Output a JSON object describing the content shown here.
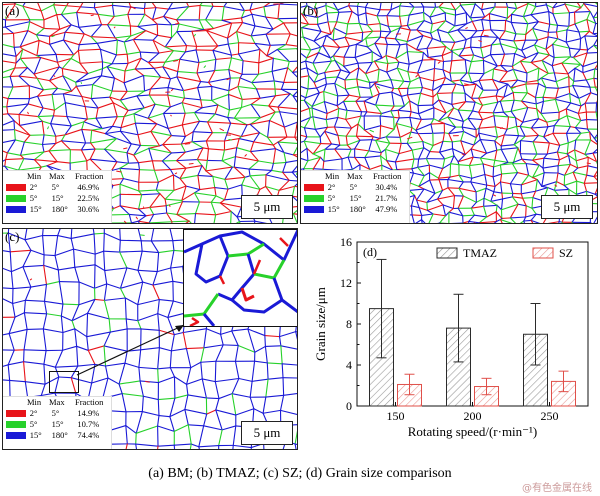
{
  "panels": [
    {
      "letter": "(a)",
      "legend": {
        "headers": [
          "Min",
          "Max",
          "Fraction"
        ],
        "rows": [
          {
            "min": "2°",
            "max": "5°",
            "fraction": "46.9%",
            "color": "#e8141a"
          },
          {
            "min": "5°",
            "max": "15°",
            "fraction": "22.5%",
            "color": "#27d12b"
          },
          {
            "min": "15°",
            "max": "180°",
            "fraction": "30.6%",
            "color": "#1a1ad6"
          }
        ]
      },
      "scale": "5 μm"
    },
    {
      "letter": "(b)",
      "legend": {
        "headers": [
          "Min",
          "Max",
          "Fraction"
        ],
        "rows": [
          {
            "min": "2°",
            "max": "5°",
            "fraction": "30.4%",
            "color": "#e8141a"
          },
          {
            "min": "5°",
            "max": "15°",
            "fraction": "21.7%",
            "color": "#27d12b"
          },
          {
            "min": "15°",
            "max": "180°",
            "fraction": "47.9%",
            "color": "#1a1ad6"
          }
        ]
      },
      "scale": "5 μm"
    },
    {
      "letter": "(c)",
      "legend": {
        "headers": [
          "Min",
          "Max",
          "Fraction"
        ],
        "rows": [
          {
            "min": "2°",
            "max": "5°",
            "fraction": "14.9%",
            "color": "#e8141a"
          },
          {
            "min": "5°",
            "max": "15°",
            "fraction": "10.7%",
            "color": "#27d12b"
          },
          {
            "min": "15°",
            "max": "180°",
            "fraction": "74.4%",
            "color": "#1a1ad6"
          }
        ]
      },
      "scale": "5 μm"
    }
  ],
  "chart_data": {
    "type": "bar",
    "letter": "(d)",
    "categories": [
      "150",
      "200",
      "250"
    ],
    "series": [
      {
        "name": "TMAZ",
        "values": [
          9.5,
          7.6,
          7.0
        ],
        "error": [
          4.8,
          3.3,
          3.0
        ],
        "color": "#2b2b2b",
        "hatch": "#9a9a9a"
      },
      {
        "name": "SZ",
        "values": [
          2.1,
          1.9,
          2.4
        ],
        "error": [
          1.0,
          0.8,
          1.0
        ],
        "color": "#e0504a",
        "hatch": "#e89a96"
      }
    ],
    "xlabel": "Rotating speed/(r·min⁻¹)",
    "ylabel": "Grain size/μm",
    "ylim": [
      0,
      16
    ],
    "yticks": [
      "0",
      "4",
      "8",
      "12",
      "16"
    ],
    "legend_position": "top"
  },
  "caption": "(a) BM; (b) TMAZ; (c) SZ; (d) Grain size comparison",
  "watermark": "@有色金属在线"
}
